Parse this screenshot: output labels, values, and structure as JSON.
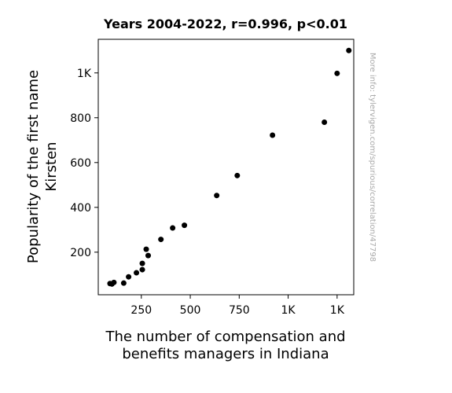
{
  "chart_data": {
    "type": "scatter",
    "title": "Years 2004-2022, r=0.996, p<0.01",
    "xlabel_lines": [
      "The number of compensation and",
      "benefits managers in Indiana"
    ],
    "ylabel_lines": [
      "Popularity of the first name",
      "Kirsten"
    ],
    "xlim": [
      30,
      1335
    ],
    "ylim": [
      10,
      1150
    ],
    "x_ticks": [
      {
        "value": 250,
        "label": "250"
      },
      {
        "value": 500,
        "label": "500"
      },
      {
        "value": 750,
        "label": "750"
      },
      {
        "value": 1000,
        "label": "1K"
      },
      {
        "value": 1250,
        "label": "1K"
      }
    ],
    "y_ticks": [
      {
        "value": 200,
        "label": "200"
      },
      {
        "value": 400,
        "label": "400"
      },
      {
        "value": 600,
        "label": "600"
      },
      {
        "value": 800,
        "label": "800"
      },
      {
        "value": 1000,
        "label": "1K"
      }
    ],
    "grid": false,
    "point_color": "#000000",
    "points": [
      {
        "x": 90,
        "y": 60
      },
      {
        "x": 100,
        "y": 58
      },
      {
        "x": 110,
        "y": 65
      },
      {
        "x": 160,
        "y": 62
      },
      {
        "x": 185,
        "y": 90
      },
      {
        "x": 225,
        "y": 108
      },
      {
        "x": 255,
        "y": 122
      },
      {
        "x": 255,
        "y": 150
      },
      {
        "x": 275,
        "y": 213
      },
      {
        "x": 285,
        "y": 185
      },
      {
        "x": 350,
        "y": 257
      },
      {
        "x": 410,
        "y": 308
      },
      {
        "x": 470,
        "y": 320
      },
      {
        "x": 635,
        "y": 453
      },
      {
        "x": 740,
        "y": 542
      },
      {
        "x": 920,
        "y": 722
      },
      {
        "x": 1185,
        "y": 780
      },
      {
        "x": 1250,
        "y": 998
      },
      {
        "x": 1310,
        "y": 1100
      }
    ]
  },
  "watermark": "More info: tylervigen.com/spurious/correlation/47798"
}
